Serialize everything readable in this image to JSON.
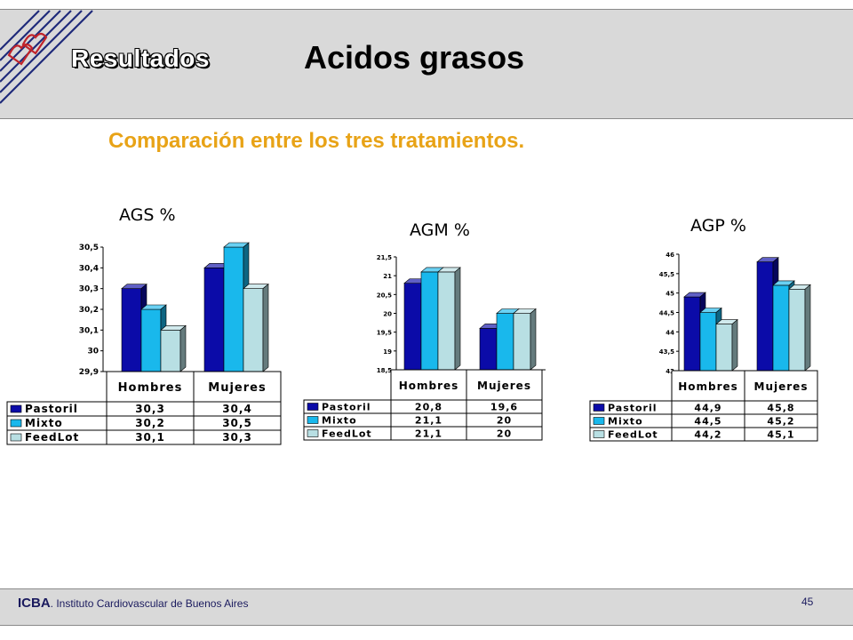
{
  "slide": {
    "section_title": "Resultados",
    "title": "Acidos grasos",
    "subtitle": "Comparación entre los tres tratamientos.",
    "colors": {
      "header_band": "#d9d9d9",
      "subtitle": "#e8a317",
      "logo_stripes": "#1f2a7a"
    }
  },
  "footer": {
    "org_abbrev": "ICBA",
    "org_name": ". Instituto Cardiovascular de Buenos Aires",
    "page_number": "45"
  },
  "chart_data": [
    {
      "type": "bar",
      "title": "AGS %",
      "categories": [
        "Hombres",
        "Mujeres"
      ],
      "ylim": [
        29.9,
        30.5
      ],
      "yticks": [
        "29,9",
        "30",
        "30,1",
        "30,2",
        "30,3",
        "30,4",
        "30,5"
      ],
      "series": [
        {
          "name": "Pastoril",
          "values": [
            30.3,
            30.4
          ],
          "labels": [
            "30,3",
            "30,4"
          ],
          "color": "#0b0ba8"
        },
        {
          "name": "Mixto",
          "values": [
            30.2,
            30.5
          ],
          "labels": [
            "30,2",
            "30,5"
          ],
          "color": "#19b8ec"
        },
        {
          "name": "FeedLot",
          "values": [
            30.1,
            30.3
          ],
          "labels": [
            "30,1",
            "30,3"
          ],
          "color": "#b8dfe3"
        }
      ],
      "grid": false,
      "legend": "table-below"
    },
    {
      "type": "bar",
      "title": "AGM %",
      "categories": [
        "Hombres",
        "Mujeres"
      ],
      "ylim": [
        18.5,
        21.5
      ],
      "yticks": [
        "18,5",
        "19",
        "19,5",
        "20",
        "20,5",
        "21",
        "21,5"
      ],
      "series": [
        {
          "name": "Pastoril",
          "values": [
            20.8,
            19.6
          ],
          "labels": [
            "20,8",
            "19,6"
          ],
          "color": "#0b0ba8"
        },
        {
          "name": "Mixto",
          "values": [
            21.1,
            20
          ],
          "labels": [
            "21,1",
            "20"
          ],
          "color": "#19b8ec"
        },
        {
          "name": "FeedLot",
          "values": [
            21.1,
            20
          ],
          "labels": [
            "21,1",
            "20"
          ],
          "color": "#b8dfe3"
        }
      ],
      "grid": false,
      "legend": "table-below"
    },
    {
      "type": "bar",
      "title": "AGP %",
      "categories": [
        "Hombres",
        "Mujeres"
      ],
      "ylim": [
        43,
        46
      ],
      "yticks": [
        "43",
        "43,5",
        "44",
        "44,5",
        "45",
        "45,5",
        "46"
      ],
      "series": [
        {
          "name": "Pastoril",
          "values": [
            44.9,
            45.8
          ],
          "labels": [
            "44,9",
            "45,8"
          ],
          "color": "#0b0ba8"
        },
        {
          "name": "Mixto",
          "values": [
            44.5,
            45.2
          ],
          "labels": [
            "44,5",
            "45,2"
          ],
          "color": "#19b8ec"
        },
        {
          "name": "FeedLot",
          "values": [
            44.2,
            45.1
          ],
          "labels": [
            "44,2",
            "45,1"
          ],
          "color": "#b8dfe3"
        }
      ],
      "grid": false,
      "legend": "table-below"
    }
  ]
}
